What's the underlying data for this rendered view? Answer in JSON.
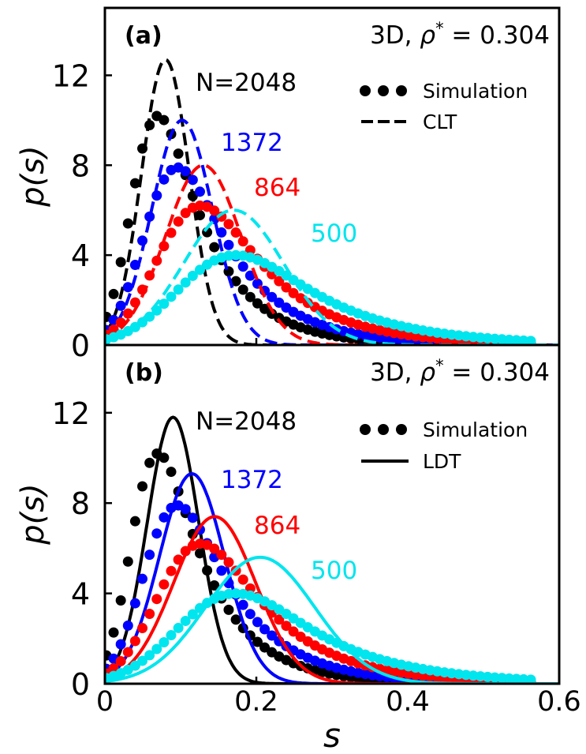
{
  "figure": {
    "xlabel": "s",
    "ylabel": "p(s)",
    "xticks": [
      "0",
      "0.2",
      "0.4",
      "0.6"
    ],
    "yticks": [
      "0",
      "4",
      "8",
      "12"
    ]
  },
  "chart_data": [
    {
      "type": "scatter+line",
      "panel_label": "(a)",
      "system": "3D, ρ* = 0.304",
      "system_prefix": "3D, ",
      "system_symbol": "ρ",
      "system_sup": "*",
      "system_value": " = 0.304",
      "xlabel": "s",
      "ylabel": "p(s)",
      "xlim": [
        0,
        0.6
      ],
      "ylim": [
        0,
        15
      ],
      "legend": {
        "position": "top-right",
        "marker_label": "Simulation",
        "line_label": "CLT",
        "line_style": "dashed"
      },
      "series": [
        {
          "name": "N=2048",
          "label": "N=2048",
          "color": "#000000",
          "sim": {
            "mean": 0.08,
            "sigma": 0.037,
            "lambda": 15,
            "amp": 10.2
          },
          "theory": {
            "mean": 0.08,
            "sigma": 0.0315,
            "amp": 12.7
          }
        },
        {
          "name": "1372",
          "label": "1372",
          "color": "#0000ff",
          "sim": {
            "mean": 0.105,
            "sigma": 0.048,
            "lambda": 13,
            "amp": 7.9
          },
          "theory": {
            "mean": 0.102,
            "sigma": 0.04,
            "amp": 10.0
          }
        },
        {
          "name": "864",
          "label": "864",
          "color": "#ff0000",
          "sim": {
            "mean": 0.135,
            "sigma": 0.063,
            "lambda": 11,
            "amp": 6.2
          },
          "theory": {
            "mean": 0.13,
            "sigma": 0.05,
            "amp": 8.0
          }
        },
        {
          "name": "500",
          "label": "500",
          "color": "#00e5ee",
          "sim": {
            "mean": 0.18,
            "sigma": 0.085,
            "lambda": 9,
            "amp": 4.0
          },
          "theory": {
            "mean": 0.17,
            "sigma": 0.066,
            "amp": 6.0
          }
        }
      ]
    },
    {
      "type": "scatter+line",
      "panel_label": "(b)",
      "system": "3D, ρ* = 0.304",
      "system_prefix": "3D, ",
      "system_symbol": "ρ",
      "system_sup": "*",
      "system_value": " = 0.304",
      "xlabel": "s",
      "ylabel": "p(s)",
      "xlim": [
        0,
        0.6
      ],
      "ylim": [
        0,
        15
      ],
      "legend": {
        "position": "top-right",
        "marker_label": "Simulation",
        "line_label": "LDT",
        "line_style": "solid"
      },
      "series": [
        {
          "name": "N=2048",
          "label": "N=2048",
          "color": "#000000",
          "sim": {
            "mean": 0.08,
            "sigma": 0.037,
            "lambda": 15,
            "amp": 10.2
          },
          "theory": {
            "mean": 0.09,
            "sigma": 0.034,
            "amp": 11.8
          }
        },
        {
          "name": "1372",
          "label": "1372",
          "color": "#0000ff",
          "sim": {
            "mean": 0.105,
            "sigma": 0.048,
            "lambda": 13,
            "amp": 7.9
          },
          "theory": {
            "mean": 0.115,
            "sigma": 0.043,
            "amp": 9.3
          }
        },
        {
          "name": "864",
          "label": "864",
          "color": "#ff0000",
          "sim": {
            "mean": 0.135,
            "sigma": 0.063,
            "lambda": 11,
            "amp": 6.2
          },
          "theory": {
            "mean": 0.145,
            "sigma": 0.054,
            "amp": 7.4
          }
        },
        {
          "name": "500",
          "label": "500",
          "color": "#00e5ee",
          "sim": {
            "mean": 0.18,
            "sigma": 0.085,
            "lambda": 9,
            "amp": 4.0
          },
          "theory": {
            "mean": 0.205,
            "sigma": 0.072,
            "amp": 5.6
          }
        }
      ]
    }
  ]
}
